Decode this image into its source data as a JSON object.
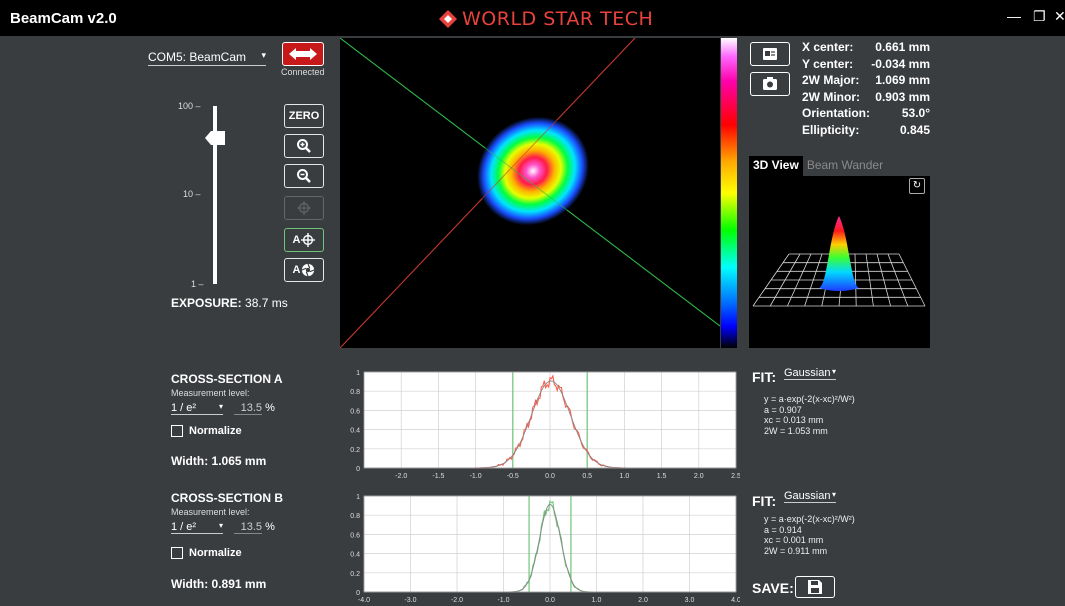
{
  "app": {
    "title": "BeamCam v2.0",
    "brand": "WORLD STAR TECH"
  },
  "window_controls": {
    "minimize": "—",
    "restore": "❐",
    "close": "✕"
  },
  "connection": {
    "port": "COM5: BeamCam",
    "status": "Connected"
  },
  "exposure": {
    "label": "EXPOSURE:",
    "value": "38.7 ms",
    "ticks": [
      "100 –",
      "10 –",
      "1 –"
    ],
    "slider_level_fraction": 0.82
  },
  "tools": {
    "zero_label": "ZERO"
  },
  "stats": [
    {
      "key": "X center:",
      "value": "0.661 mm"
    },
    {
      "key": "Y center:",
      "value": "-0.034 mm"
    },
    {
      "key": "2W Major:",
      "value": "1.069 mm"
    },
    {
      "key": "2W Minor:",
      "value": "0.903 mm"
    },
    {
      "key": "Orientation:",
      "value": "53.0°"
    },
    {
      "key": "Ellipticity:",
      "value": "0.845"
    }
  ],
  "tabs": [
    {
      "label": "3D View",
      "active": true
    },
    {
      "label": "Beam Wander",
      "active": false
    }
  ],
  "cross_sections": [
    {
      "title": "CROSS-SECTION A",
      "measurement_label": "Measurement level:",
      "level": "1 / e²",
      "level_percent": "13.5",
      "percent_unit": "%",
      "normalize_label": "Normalize",
      "width": "Width: 1.065 mm",
      "fit_label": "FIT:",
      "fit_type": "Gaussian",
      "fit_lines": [
        "y = a·exp(-2(x-xc)²/W²)",
        "a = 0.907",
        "xc = 0.013 mm",
        "2W = 1.053 mm"
      ],
      "chart_data": {
        "type": "line",
        "x_ticks": [
          "-2.0",
          "-1.5",
          "-1.0",
          "-0.5",
          "0.0",
          "0.5",
          "1.0",
          "1.5",
          "2.0",
          "2.5"
        ],
        "y_ticks": [
          "0",
          "0.2",
          "0.4",
          "0.6",
          "0.8",
          "1"
        ],
        "xlim": [
          -2.5,
          2.5
        ],
        "ylim": [
          0,
          1
        ],
        "series": [
          {
            "color": "#ff5a4a",
            "profile": "gaussian",
            "a": 0.907,
            "xc": 0.013,
            "w": 0.5265
          }
        ],
        "markers": [
          -0.5,
          0.5
        ],
        "marker_color": "#6ec67a"
      }
    },
    {
      "title": "CROSS-SECTION B",
      "measurement_label": "Measurement level:",
      "level": "1 / e²",
      "level_percent": "13.5",
      "percent_unit": "%",
      "normalize_label": "Normalize",
      "width": "Width: 0.891 mm",
      "fit_label": "FIT:",
      "fit_type": "Gaussian",
      "fit_lines": [
        "y = a·exp(-2(x-xc)²/W²)",
        "a = 0.914",
        "xc = 0.001 mm",
        "2W = 0.911 mm"
      ],
      "chart_data": {
        "type": "line",
        "x_ticks": [
          "-4.0",
          "-3.0",
          "-2.0",
          "-1.0",
          "0.0",
          "1.0",
          "2.0",
          "3.0",
          "4.0"
        ],
        "y_ticks": [
          "0",
          "0.2",
          "0.4",
          "0.6",
          "0.8",
          "1"
        ],
        "xlim": [
          -4,
          4
        ],
        "ylim": [
          0,
          1
        ],
        "series": [
          {
            "color": "#6ec67a",
            "profile": "gaussian",
            "a": 0.914,
            "xc": 0.001,
            "w": 0.4555
          }
        ],
        "markers": [
          -0.45,
          0.45
        ],
        "marker_color": "#6ec67a"
      }
    }
  ],
  "save": {
    "label": "SAVE:"
  }
}
